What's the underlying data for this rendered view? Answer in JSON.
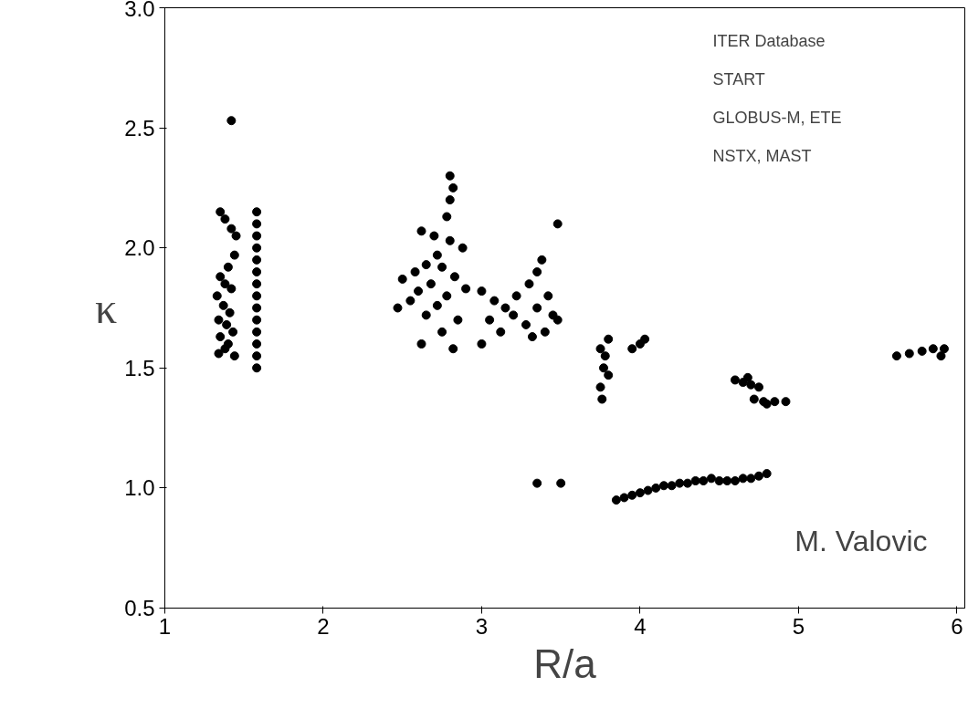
{
  "chart_data": {
    "type": "scatter",
    "xlabel": "R/a",
    "ylabel": "κ",
    "xlim": [
      1,
      6.05
    ],
    "ylim": [
      0.5,
      3.0
    ],
    "xticks": [
      1,
      2,
      3,
      4,
      5,
      6
    ],
    "yticks": [
      {
        "value": 0.5,
        "label": "0.5"
      },
      {
        "value": 1.0,
        "label": "1.0"
      },
      {
        "value": 1.5,
        "label": "1.5"
      },
      {
        "value": 2.0,
        "label": "2.0"
      },
      {
        "value": 2.5,
        "label": "2.5"
      },
      {
        "value": 3.0,
        "label": "3.0"
      }
    ],
    "grid": false,
    "marker": "circle",
    "annotations": [
      "ITER Database",
      "START",
      "GLOBUS-M, ETE",
      "NSTX, MAST",
      "M. Valovic"
    ],
    "series": [
      {
        "color": "#000000",
        "x": [
          1.42,
          1.35,
          1.38,
          1.42,
          1.45,
          1.44,
          1.4,
          1.35,
          1.38,
          1.42,
          1.33,
          1.37,
          1.41,
          1.34,
          1.39,
          1.43,
          1.35,
          1.4,
          1.34,
          1.38,
          1.44,
          1.58,
          1.58,
          1.58,
          1.58,
          1.58,
          1.58,
          1.58,
          1.58,
          1.58,
          1.58,
          1.58,
          1.58,
          1.58,
          1.58,
          2.8,
          2.82,
          2.8,
          2.78,
          2.62,
          2.7,
          2.8,
          2.88,
          2.72,
          2.65,
          2.58,
          2.75,
          2.83,
          2.5,
          2.68,
          2.6,
          2.78,
          2.9,
          2.55,
          2.72,
          2.47,
          2.65,
          2.85,
          2.75,
          2.62,
          2.82,
          3.0,
          3.08,
          3.15,
          3.22,
          3.3,
          3.35,
          3.38,
          3.05,
          3.12,
          3.2,
          3.28,
          3.35,
          3.42,
          3.45,
          3.4,
          3.32,
          3.48,
          3.0,
          3.48,
          3.35,
          3.5,
          3.75,
          3.78,
          3.8,
          3.77,
          3.8,
          3.75,
          3.76,
          3.95,
          4.0,
          4.03,
          3.85,
          3.9,
          3.95,
          4.0,
          4.05,
          4.1,
          4.15,
          4.2,
          4.25,
          4.3,
          4.35,
          4.4,
          4.45,
          4.5,
          4.55,
          4.6,
          4.65,
          4.7,
          4.75,
          4.8,
          4.6,
          4.65,
          4.7,
          4.75,
          4.68,
          4.72,
          4.78,
          4.85,
          4.92,
          4.8,
          5.62,
          5.7,
          5.78,
          5.85,
          5.92,
          5.9
        ],
        "values": [
          2.53,
          2.15,
          2.12,
          2.08,
          2.05,
          1.97,
          1.92,
          1.88,
          1.85,
          1.83,
          1.8,
          1.76,
          1.73,
          1.7,
          1.68,
          1.65,
          1.63,
          1.6,
          1.56,
          1.58,
          1.55,
          1.5,
          1.55,
          1.6,
          1.65,
          1.7,
          1.75,
          1.8,
          1.85,
          1.9,
          1.95,
          2.0,
          2.05,
          2.1,
          2.15,
          2.3,
          2.25,
          2.2,
          2.13,
          2.07,
          2.05,
          2.03,
          2.0,
          1.97,
          1.93,
          1.9,
          1.92,
          1.88,
          1.87,
          1.85,
          1.82,
          1.8,
          1.83,
          1.78,
          1.76,
          1.75,
          1.72,
          1.7,
          1.65,
          1.6,
          1.58,
          1.82,
          1.78,
          1.75,
          1.8,
          1.85,
          1.9,
          1.95,
          1.7,
          1.65,
          1.72,
          1.68,
          1.75,
          1.8,
          1.72,
          1.65,
          1.63,
          2.1,
          1.6,
          1.7,
          1.02,
          1.02,
          1.58,
          1.55,
          1.62,
          1.5,
          1.47,
          1.42,
          1.37,
          1.58,
          1.6,
          1.62,
          0.95,
          0.96,
          0.97,
          0.98,
          0.99,
          1.0,
          1.01,
          1.01,
          1.02,
          1.02,
          1.03,
          1.03,
          1.04,
          1.03,
          1.03,
          1.03,
          1.04,
          1.04,
          1.05,
          1.06,
          1.45,
          1.44,
          1.43,
          1.42,
          1.46,
          1.37,
          1.36,
          1.36,
          1.36,
          1.35,
          1.55,
          1.56,
          1.57,
          1.58,
          1.58,
          1.55
        ]
      }
    ]
  }
}
